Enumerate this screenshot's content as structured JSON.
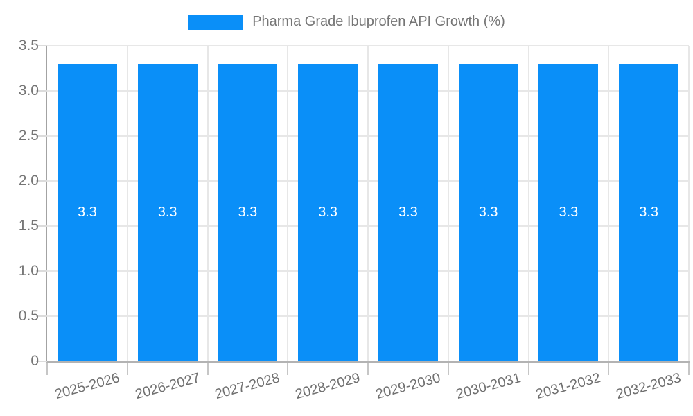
{
  "legend": {
    "label": "Pharma Grade Ibuprofen API Growth (%)"
  },
  "chart_data": {
    "type": "bar",
    "title": "Pharma Grade Ibuprofen API Growth (%)",
    "categories": [
      "2025-2026",
      "2026-2027",
      "2027-2028",
      "2028-2029",
      "2029-2030",
      "2030-2031",
      "2031-2032",
      "2032-2033"
    ],
    "series": [
      {
        "name": "Pharma Grade Ibuprofen API Growth (%)",
        "values": [
          3.3,
          3.3,
          3.3,
          3.3,
          3.3,
          3.3,
          3.3,
          3.3
        ],
        "data_labels": [
          "3.3",
          "3.3",
          "3.3",
          "3.3",
          "3.3",
          "3.3",
          "3.3",
          "3.3"
        ]
      }
    ],
    "xlabel": "",
    "ylabel": "",
    "ylim": [
      0,
      3.5
    ],
    "ytick_step": 0.5,
    "ytick_labels": [
      "0",
      "0.5",
      "1.0",
      "1.5",
      "2.0",
      "2.5",
      "3.0",
      "3.5"
    ],
    "grid": true,
    "legend_position": "top-center",
    "bar_color": "#0a8ff8",
    "data_label_color": "#ffffff",
    "axis_label_color": "#757575"
  }
}
